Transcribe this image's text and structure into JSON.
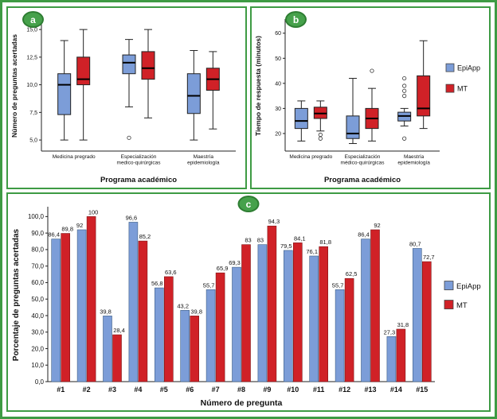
{
  "colors": {
    "epiapp": "#7C9DD8",
    "epiapp_border": "#3D5E85",
    "mt": "#D02127",
    "mt_border": "#7E1416",
    "frame_green": "#3E9B44",
    "badge_green": "#46A14B"
  },
  "panels": {
    "a": {
      "label": "a"
    },
    "b": {
      "label": "b"
    },
    "c": {
      "label": "c"
    }
  },
  "legend": {
    "epiapp": "EpiApp",
    "mt": "MT"
  },
  "chart_data": [
    {
      "id": "a",
      "type": "boxplot",
      "title": "",
      "ylabel": "Número de preguntas acertadas",
      "xlabel": "Programa académico",
      "ylim": [
        4,
        15.8
      ],
      "yticks": [
        5.0,
        7.5,
        10.0,
        12.5,
        15.0
      ],
      "ytick_labels": [
        "5,0",
        "7,5",
        "10,0",
        "12,5",
        "15,0"
      ],
      "categories": [
        "Medicina pregrado",
        "Especialización\nmedico-quirúrgicas",
        "Maestría\nepidemiología"
      ],
      "series": [
        {
          "name": "EpiApp",
          "boxes": [
            {
              "low": 5,
              "q1": 7.3,
              "median": 10,
              "q3": 11,
              "high": 14,
              "outliers": []
            },
            {
              "low": 8,
              "q1": 11,
              "median": 12,
              "q3": 12.7,
              "high": 14.1,
              "outliers": [
                5.2
              ]
            },
            {
              "low": 5,
              "q1": 7.4,
              "median": 9,
              "q3": 11,
              "high": 13.1,
              "outliers": []
            }
          ]
        },
        {
          "name": "MT",
          "boxes": [
            {
              "low": 5,
              "q1": 10,
              "median": 10.5,
              "q3": 12.5,
              "high": 15,
              "outliers": []
            },
            {
              "low": 7,
              "q1": 10.5,
              "median": 11.5,
              "q3": 13,
              "high": 15,
              "outliers": []
            },
            {
              "low": 6,
              "q1": 9.5,
              "median": 10.5,
              "q3": 11.5,
              "high": 13,
              "outliers": []
            }
          ]
        }
      ],
      "legend_position": "none",
      "grid": false
    },
    {
      "id": "b",
      "type": "boxplot",
      "title": "",
      "ylabel": "Tiempo de respuesta (minutos)",
      "xlabel": "Programa académico",
      "ylim": [
        13,
        65
      ],
      "yticks": [
        20,
        30,
        40,
        50,
        60
      ],
      "ytick_labels": [
        "20",
        "30",
        "40",
        "50",
        "60"
      ],
      "categories": [
        "Medicina pregrado",
        "Especialización\nmédico-quirúrgicas",
        "Maestría\nepidemiología"
      ],
      "series": [
        {
          "name": "EpiApp",
          "boxes": [
            {
              "low": 17,
              "q1": 22,
              "median": 25,
              "q3": 30,
              "high": 33,
              "outliers": []
            },
            {
              "low": 16,
              "q1": 18,
              "median": 20,
              "q3": 27,
              "high": 42,
              "outliers": []
            },
            {
              "low": 23,
              "q1": 25,
              "median": 27,
              "q3": 28.5,
              "high": 30,
              "outliers": [
                18,
                35,
                37,
                39,
                42
              ]
            }
          ]
        },
        {
          "name": "MT",
          "boxes": [
            {
              "low": 21,
              "q1": 26,
              "median": 28,
              "q3": 30.5,
              "high": 33,
              "outliers": [
                18,
                19.5
              ]
            },
            {
              "low": 17,
              "q1": 22,
              "median": 26,
              "q3": 30,
              "high": 38,
              "outliers": [
                45
              ]
            },
            {
              "low": 22,
              "q1": 27,
              "median": 30,
              "q3": 43,
              "high": 57,
              "outliers": []
            }
          ]
        }
      ],
      "legend_position": "right",
      "grid": false
    },
    {
      "id": "c",
      "type": "bar",
      "title": "",
      "ylabel": "Porcentaje de preguntas acertadas",
      "xlabel": "Número de pregunta",
      "ylim": [
        0,
        105
      ],
      "yticks": [
        0,
        10,
        20,
        30,
        40,
        50,
        60,
        70,
        80,
        90,
        100
      ],
      "ytick_labels": [
        "0,0",
        "10,0",
        "20,0",
        "30,0",
        "40,0",
        "50,0",
        "60,0",
        "70,0",
        "80,0",
        "90,0",
        "100,0"
      ],
      "categories": [
        "#1",
        "#2",
        "#3",
        "#4",
        "#5",
        "#6",
        "#7",
        "#8",
        "#9",
        "#10",
        "#11",
        "#12",
        "#13",
        "#14",
        "#15"
      ],
      "series": [
        {
          "name": "EpiApp",
          "values": [
            86.4,
            92,
            39.8,
            96.6,
            56.8,
            43.2,
            55.7,
            69.3,
            83,
            79.5,
            76.1,
            55.7,
            86.4,
            27.3,
            80.7
          ],
          "labels": [
            "86,4",
            "92",
            "39,8",
            "96,6",
            "56,8",
            "43,2",
            "55,7",
            "69,3",
            "83",
            "79,5",
            "76,1",
            "55,7",
            "86,4",
            "27,3",
            "80,7"
          ]
        },
        {
          "name": "MT",
          "values": [
            89.8,
            100,
            28.4,
            85.2,
            63.6,
            39.8,
            65.9,
            83,
            94.3,
            84.1,
            81.8,
            62.5,
            92,
            31.8,
            72.7
          ],
          "labels": [
            "89,8",
            "100",
            "28,4",
            "85,2",
            "63,6",
            "39,8",
            "65,9",
            "83",
            "94,3",
            "84,1",
            "81,8",
            "62,5",
            "92",
            "31,8",
            "72,7"
          ]
        }
      ],
      "legend_position": "right",
      "grid": false
    }
  ]
}
